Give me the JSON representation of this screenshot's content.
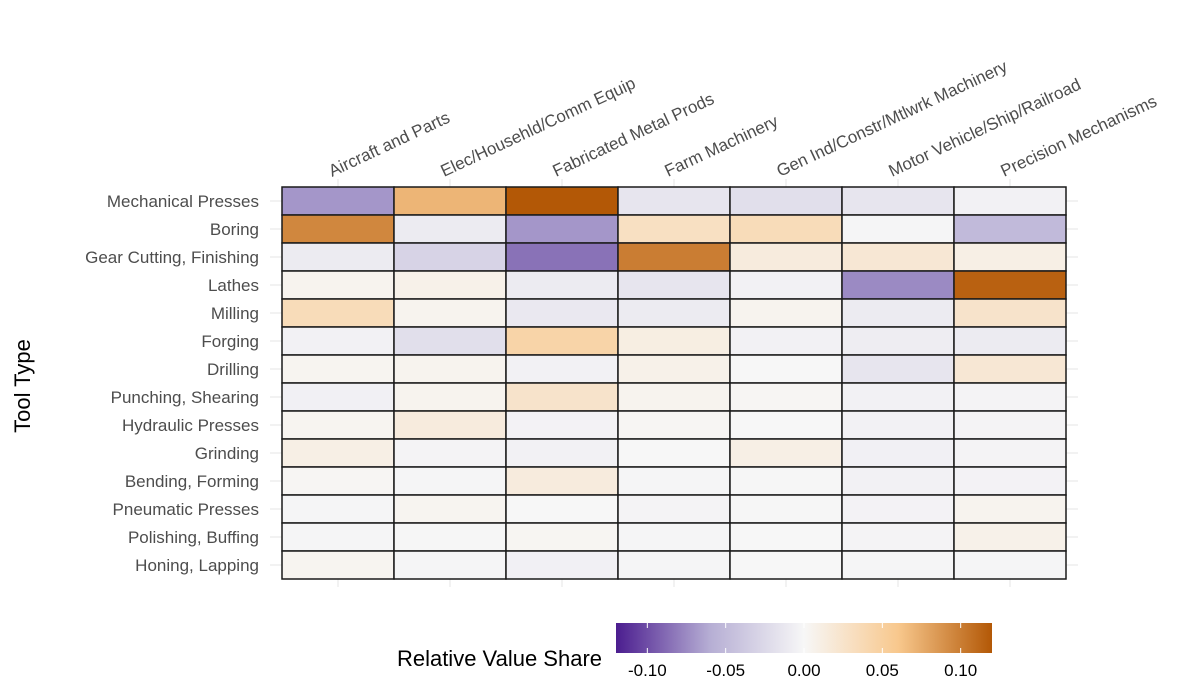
{
  "chart_data": {
    "type": "heatmap",
    "ylabel": "Tool Type",
    "columns": [
      "Aircraft and Parts",
      "Elec/Househld/Comm Equip",
      "Fabricated Metal Prods",
      "Farm Machinery",
      "Gen Ind/Constr/Mtlwrk Machinery",
      "Motor Vehicle/Ship/Railroad",
      "Precision Mechanisms"
    ],
    "rows": [
      "Mechanical Presses",
      "Boring",
      "Gear Cutting, Finishing",
      "Lathes",
      "Milling",
      "Forging",
      "Drilling",
      "Punching, Shearing",
      "Hydraulic Presses",
      "Grinding",
      "Bending, Forming",
      "Pneumatic Presses",
      "Polishing, Buffing",
      "Honing, Lapping"
    ],
    "values": [
      [
        -0.07,
        0.07,
        0.12,
        -0.015,
        -0.02,
        -0.015,
        -0.005
      ],
      [
        0.095,
        -0.01,
        -0.07,
        0.03,
        0.035,
        -0.002,
        -0.05
      ],
      [
        -0.01,
        -0.03,
        -0.085,
        0.1,
        0.015,
        0.02,
        0.01
      ],
      [
        0.005,
        0.008,
        -0.01,
        -0.015,
        -0.005,
        -0.075,
        0.115
      ],
      [
        0.035,
        0.005,
        -0.012,
        -0.01,
        0.005,
        -0.01,
        0.025
      ],
      [
        -0.005,
        -0.02,
        0.045,
        0.012,
        -0.005,
        -0.008,
        -0.01
      ],
      [
        0.004,
        0.005,
        -0.005,
        0.008,
        0.0,
        -0.015,
        0.02
      ],
      [
        -0.006,
        0.005,
        0.025,
        0.005,
        0.002,
        -0.005,
        -0.003
      ],
      [
        0.004,
        0.015,
        -0.004,
        0.002,
        0.0,
        -0.005,
        -0.003
      ],
      [
        0.01,
        -0.003,
        -0.005,
        0.0,
        0.01,
        -0.006,
        -0.003
      ],
      [
        0.002,
        -0.002,
        0.015,
        -0.002,
        -0.001,
        -0.005,
        -0.004
      ],
      [
        -0.002,
        0.004,
        0.0,
        -0.003,
        -0.001,
        -0.004,
        0.005
      ],
      [
        -0.002,
        -0.001,
        0.003,
        -0.002,
        0.0,
        -0.003,
        0.008
      ],
      [
        0.004,
        -0.002,
        -0.006,
        -0.002,
        0.0,
        -0.002,
        -0.002
      ]
    ],
    "legend": {
      "title": "Relative Value Share",
      "range": [
        -0.12,
        0.12
      ],
      "ticks": [
        -0.1,
        -0.05,
        0.0,
        0.05,
        0.1
      ],
      "tick_labels": [
        "-0.10",
        "-0.05",
        "0.00",
        "0.05",
        "0.10"
      ],
      "placement": "bottom"
    },
    "colors": {
      "neg": "#4b1d8f",
      "mid_neg": "#b6aed4",
      "zero": "#f7f7f7",
      "mid_pos": "#f8c88d",
      "pos": "#b35806",
      "cell_border": "#1a1a1a"
    }
  }
}
